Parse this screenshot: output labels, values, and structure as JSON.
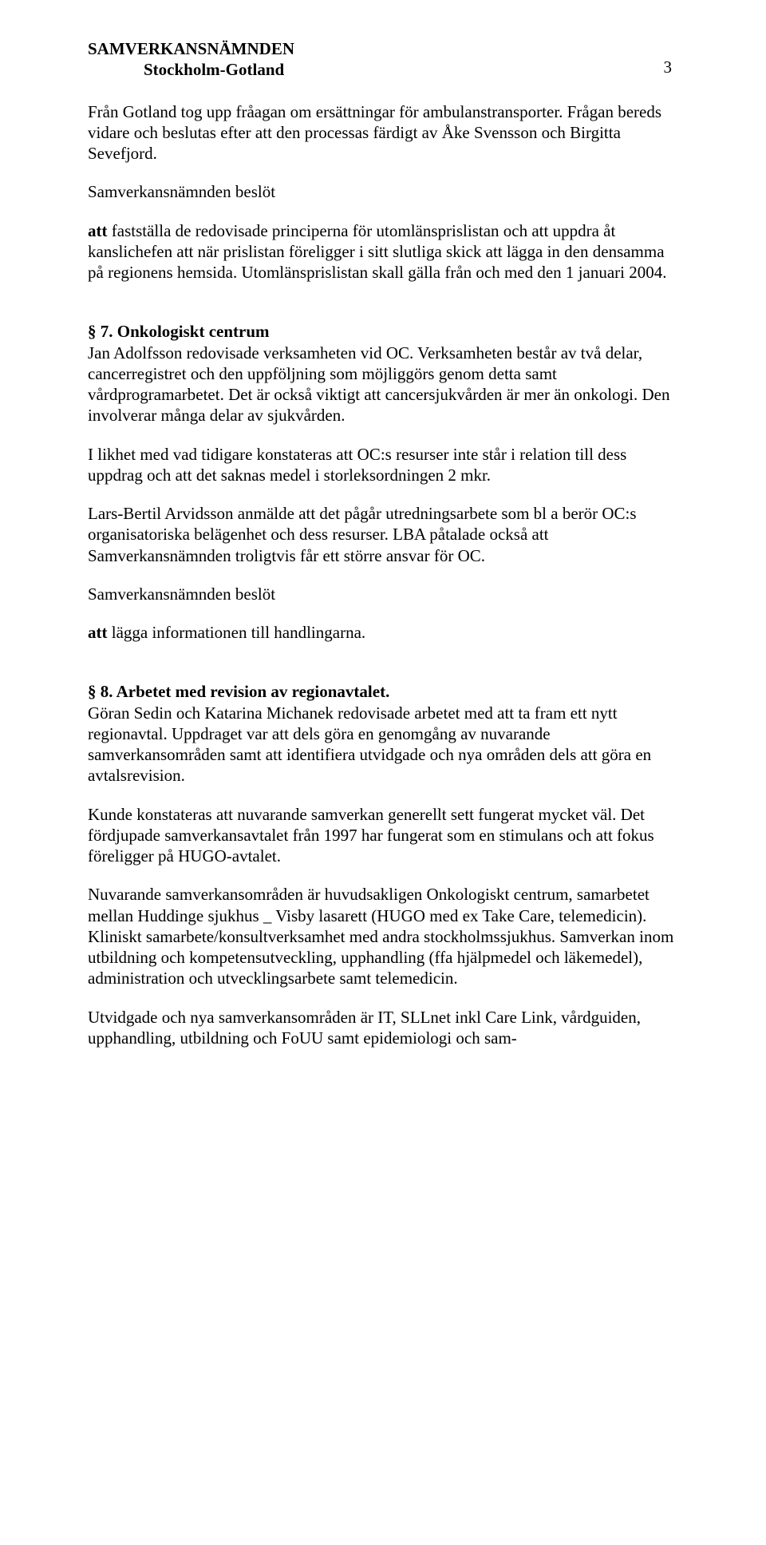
{
  "header": {
    "org": "SAMVERKANSNÄMNDEN",
    "sub": "Stockholm-Gotland",
    "pageNumber": "3"
  },
  "paragraphs": {
    "p1": "Från Gotland tog upp fråagan om ersättningar för ambulanstransporter. Frågan bereds vidare och beslutas efter att den processas färdigt av Åke Svensson och Birgitta Sevefjord.",
    "p2": "Samverkansnämnden beslöt",
    "p3_att": "att",
    "p3_rest": " fastställa de redovisade principerna för utomlänsprislistan och att uppdra åt kanslichefen att när prislistan föreligger i sitt slutliga skick att lägga in den densamma på regionens hemsida. Utomlänsprislistan skall gälla från och med den 1 januari 2004.",
    "s7_heading": "§ 7.   Onkologiskt centrum",
    "s7_p1": "Jan Adolfsson redovisade verksamheten vid OC. Verksamheten består av två delar, cancerregistret och den uppföljning som möjliggörs genom detta samt vårdprogramarbetet. Det är också viktigt att cancersjukvården är mer än onkologi. Den involverar många delar av sjukvården.",
    "s7_p2": "I likhet med vad tidigare konstateras att OC:s resurser inte står i relation till dess uppdrag och att det saknas medel i storleksordningen 2 mkr.",
    "s7_p3": "Lars-Bertil Arvidsson anmälde att det pågår utredningsarbete som bl a berör OC:s organisatoriska belägenhet och dess resurser. LBA påtalade också att Samverkansnämnden troligtvis får ett större ansvar för OC.",
    "s7_p4": "Samverkansnämnden beslöt",
    "s7_p5_att": "att",
    "s7_p5_rest": " lägga informationen till handlingarna.",
    "s8_heading": "§ 8.   Arbetet med revision av regionavtalet.",
    "s8_p1": "Göran Sedin och Katarina Michanek redovisade arbetet med att ta fram ett nytt regionavtal. Uppdraget var att dels göra en genomgång av nuvarande samverkansområden samt att identifiera utvidgade och nya områden dels att göra en avtalsrevision.",
    "s8_p2": "Kunde konstateras att nuvarande samverkan generellt sett fungerat mycket väl. Det fördjupade samverkansavtalet från 1997 har fungerat som en stimulans och att fokus föreligger på HUGO-avtalet.",
    "s8_p3": "Nuvarande samverkansområden är huvudsakligen Onkologiskt centrum, samarbetet mellan Huddinge sjukhus _ Visby lasarett (HUGO med ex Take Care, telemedicin). Kliniskt samarbete/konsultverksamhet med andra stockholmssjukhus. Samverkan inom utbildning och kompetensutveckling, upphandling (ffa hjälpmedel och läkemedel), administration och utvecklingsarbete samt telemedicin.",
    "s8_p4": "Utvidgade och nya samverkansområden är IT, SLLnet inkl Care Link, vårdguiden, upphandling, utbildning och FoUU samt epidemiologi och sam-"
  }
}
